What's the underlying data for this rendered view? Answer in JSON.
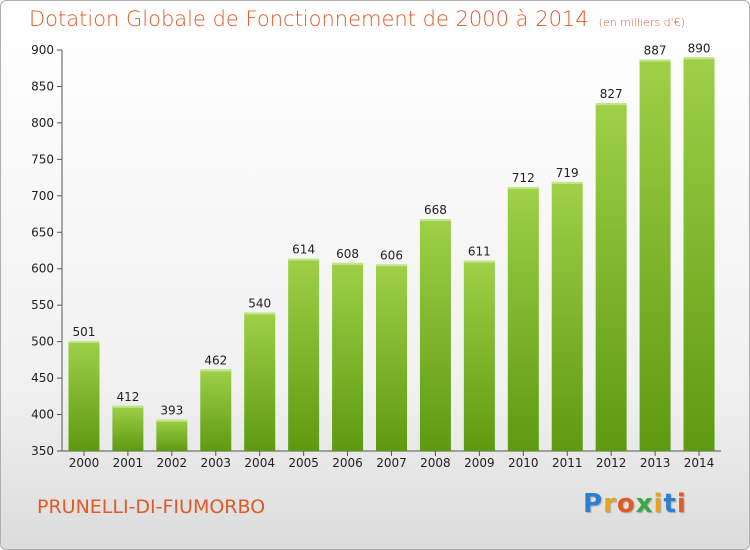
{
  "commune": "PRUNELLI-DI-FIUMORBO",
  "logo": {
    "letters": [
      "P",
      "r",
      "o",
      "x",
      "i",
      "t",
      "i"
    ],
    "colors": [
      "#2a7fcf",
      "#e8a21c",
      "#e05a28",
      "#3aa843",
      "#e8a21c",
      "#2a7fcf",
      "#e05a28"
    ]
  },
  "colors": {
    "bar_top": "#9ed048",
    "bar_bottom": "#5e9a10",
    "title": "#e05a28",
    "grid": "#dddddd"
  },
  "chart_data": {
    "type": "bar",
    "title": "Dotation Globale de Fonctionnement de 2000 à 2014",
    "subtitle": "(en milliers d'€)",
    "categories": [
      "2000",
      "2001",
      "2002",
      "2003",
      "2004",
      "2005",
      "2006",
      "2007",
      "2008",
      "2009",
      "2010",
      "2011",
      "2012",
      "2013",
      "2014"
    ],
    "values": [
      501,
      412,
      393,
      462,
      540,
      614,
      608,
      606,
      668,
      611,
      712,
      719,
      827,
      887,
      890
    ],
    "yticks": [
      350,
      400,
      450,
      500,
      550,
      600,
      650,
      700,
      750,
      800,
      850,
      900
    ],
    "ylim": [
      350,
      900
    ],
    "xlabel": "",
    "ylabel": "",
    "grid": false,
    "legend": "none"
  }
}
